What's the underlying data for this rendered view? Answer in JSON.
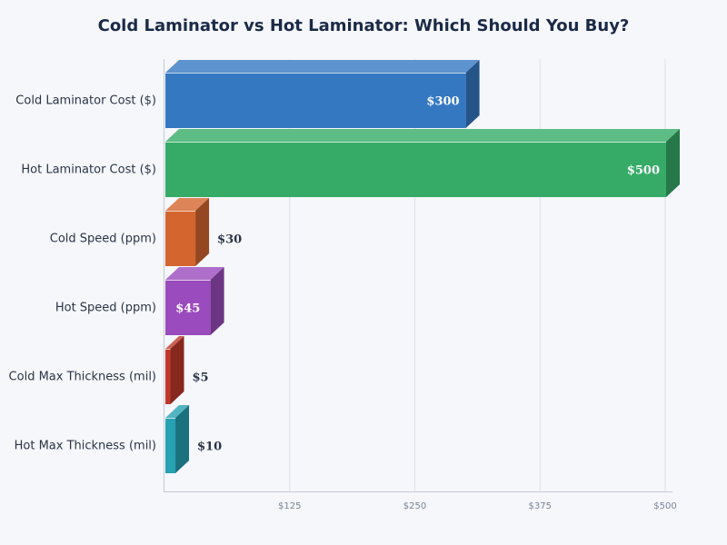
{
  "chart_data": {
    "type": "bar",
    "orientation": "horizontal",
    "style": "3d",
    "title": "Cold Laminator vs Hot Laminator: Which Should You Buy?",
    "categories": [
      "Cold Laminator Cost ($)",
      "Hot Laminator Cost ($)",
      "Cold Speed (ppm)",
      "Hot Speed (ppm)",
      "Cold Max Thickness (mil)",
      "Hot Max Thickness (mil)"
    ],
    "values": [
      300,
      500,
      30,
      45,
      5,
      10
    ],
    "data_labels": [
      "$300",
      "$500",
      "$30",
      "$45",
      "$5",
      "$10"
    ],
    "colors": [
      "#3578c2",
      "#36ab67",
      "#d4652e",
      "#9a4bbd",
      "#c0392b",
      "#27a2b2"
    ],
    "x_ticks": [
      125,
      250,
      375,
      500
    ],
    "x_tick_labels": [
      "$125",
      "$250",
      "$375",
      "$500"
    ],
    "xlim": [
      0,
      500
    ],
    "grid": true,
    "xlabel": "",
    "ylabel": ""
  }
}
